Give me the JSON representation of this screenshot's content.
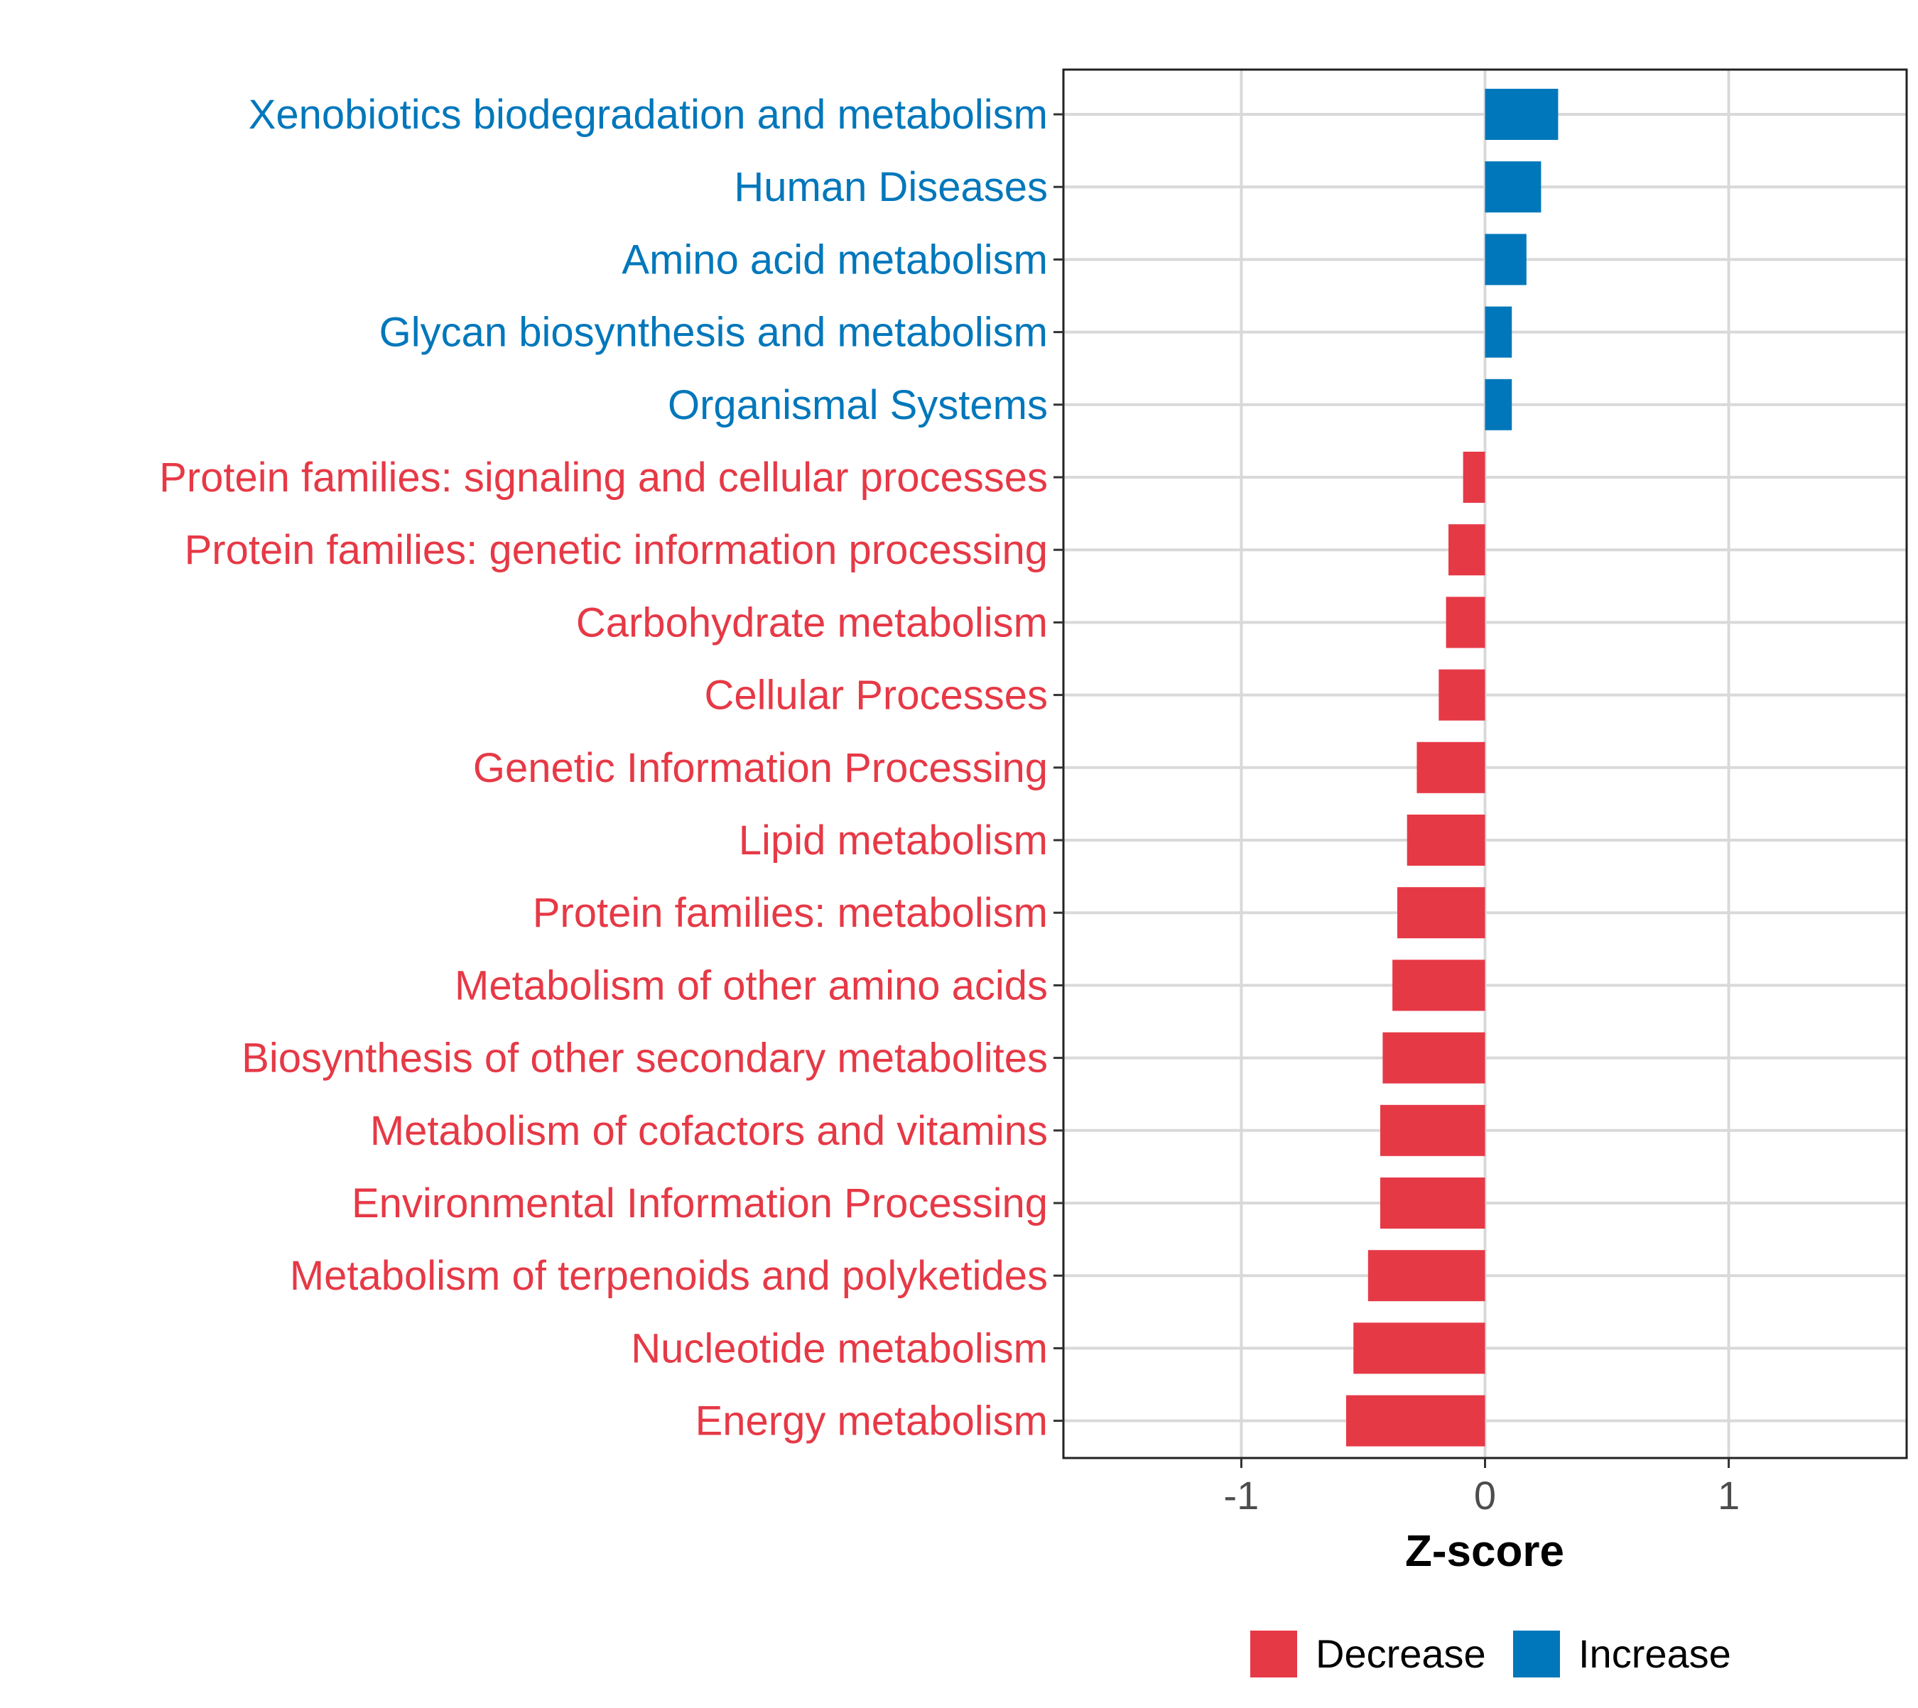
{
  "chart_data": {
    "type": "bar",
    "orientation": "horizontal",
    "title": "",
    "xlabel": "Z-score",
    "ylabel": "",
    "xlim": [
      -1.73,
      1.73
    ],
    "xticks": [
      -1,
      0,
      1
    ],
    "xtick_labels": [
      "-1",
      "0",
      "1"
    ],
    "grid": true,
    "legend_position": "bottom",
    "categories": [
      "Xenobiotics biodegradation and metabolism",
      "Human Diseases",
      "Amino acid metabolism",
      "Glycan biosynthesis and metabolism",
      "Organismal Systems",
      "Protein families: signaling and cellular processes",
      "Protein families: genetic information processing",
      "Carbohydrate metabolism",
      "Cellular Processes",
      "Genetic Information Processing",
      "Lipid metabolism",
      "Protein families: metabolism",
      "Metabolism of other amino acids",
      "Biosynthesis of other secondary metabolites",
      "Metabolism of cofactors and vitamins",
      "Environmental Information Processing",
      "Metabolism of terpenoids and polyketides",
      "Nucleotide metabolism",
      "Energy metabolism"
    ],
    "values": [
      0.3,
      0.23,
      0.17,
      0.11,
      0.11,
      -0.09,
      -0.15,
      -0.16,
      -0.19,
      -0.28,
      -0.32,
      -0.36,
      -0.38,
      -0.42,
      -0.43,
      -0.43,
      -0.48,
      -0.54,
      -0.57
    ],
    "groups": [
      "Increase",
      "Increase",
      "Increase",
      "Increase",
      "Increase",
      "Decrease",
      "Decrease",
      "Decrease",
      "Decrease",
      "Decrease",
      "Decrease",
      "Decrease",
      "Decrease",
      "Decrease",
      "Decrease",
      "Decrease",
      "Decrease",
      "Decrease",
      "Decrease"
    ],
    "legend": [
      {
        "name": "Decrease",
        "color": "#E63946"
      },
      {
        "name": "Increase",
        "color": "#0077BB"
      }
    ]
  }
}
